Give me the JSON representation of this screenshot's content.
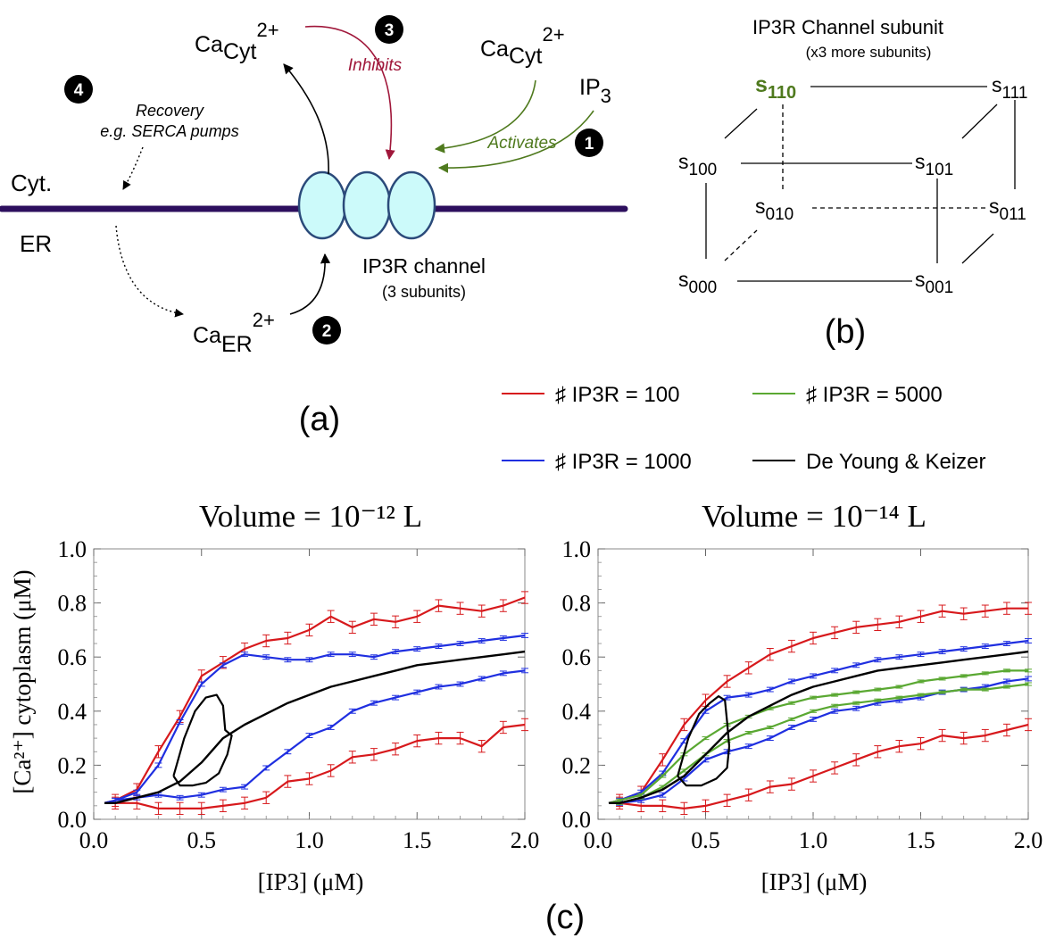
{
  "panel_a": {
    "label": "(a)",
    "ca_cyt_left": {
      "base": "Ca",
      "sub": "Cyt",
      "sup": "2+"
    },
    "ca_cyt_right": {
      "base": "Ca",
      "sub": "Cyt",
      "sup": "2+"
    },
    "ip3": {
      "base": "IP",
      "sub": "3"
    },
    "ca_er": {
      "base": "Ca",
      "sub": "ER",
      "sup": "2+"
    },
    "inhibits": "Inhibits",
    "activates": "Activates",
    "recovery_line1": "Recovery",
    "recovery_line2": "e.g. SERCA pumps",
    "cyt": "Cyt.",
    "er": "ER",
    "channel_title": "IP3R channel",
    "channel_sub": "(3 subunits)",
    "badges": [
      "1",
      "2",
      "3",
      "4"
    ],
    "colors": {
      "inhibit": "#a0173a",
      "activate": "#4f7a1e",
      "membrane": "#2d0f5e",
      "channel_fill": "#ccfafa",
      "channel_stroke": "#2b4a7a"
    }
  },
  "panel_b": {
    "label": "(b)",
    "title": "IP3R Channel subunit",
    "subtitle": "(x3 more subunits)",
    "states": {
      "s110": {
        "base": "s",
        "sub": "110"
      },
      "s111": {
        "base": "s",
        "sub": "111"
      },
      "s100": {
        "base": "s",
        "sub": "100"
      },
      "s101": {
        "base": "s",
        "sub": "101"
      },
      "s010": {
        "base": "s",
        "sub": "010"
      },
      "s011": {
        "base": "s",
        "sub": "011"
      },
      "s000": {
        "base": "s",
        "sub": "000"
      },
      "s001": {
        "base": "s",
        "sub": "001"
      }
    },
    "highlight_color": "#4f7a1e"
  },
  "panel_c": {
    "label": "(c)",
    "legend": [
      {
        "label": "♯ IP3R = 100",
        "color": "#d7191c"
      },
      {
        "label": "♯ IP3R = 5000",
        "color": "#5aa832"
      },
      {
        "label": "♯ IP3R = 1000",
        "color": "#1f2fe0"
      },
      {
        "label": "De Young & Keizer",
        "color": "#000000"
      }
    ],
    "ylabel": "[Ca²⁺] cytoplasm (μM)",
    "xlabel": "[IP3] (μM)"
  },
  "chart_data": [
    {
      "type": "line",
      "title": "Volume = 10⁻¹² L",
      "xlabel": "[IP3] (μM)",
      "ylabel": "[Ca²⁺] cytoplasm (μM)",
      "xlim": [
        0.0,
        2.0
      ],
      "ylim": [
        0.0,
        1.0
      ],
      "xticks": [
        "0.0",
        "0.5",
        "1.0",
        "1.5",
        "2.0"
      ],
      "yticks": [
        "0.0",
        "0.2",
        "0.4",
        "0.6",
        "0.8",
        "1.0"
      ],
      "grid": false,
      "x": [
        0.05,
        0.1,
        0.2,
        0.3,
        0.4,
        0.5,
        0.6,
        0.7,
        0.8,
        0.9,
        1.0,
        1.1,
        1.2,
        1.3,
        1.4,
        1.5,
        1.6,
        1.7,
        1.8,
        1.9,
        2.0
      ],
      "series": [
        {
          "name": "♯ IP3R = 100",
          "color": "#d7191c",
          "branch": "upper",
          "values": [
            0.06,
            0.07,
            0.11,
            0.25,
            0.38,
            0.53,
            0.58,
            0.63,
            0.66,
            0.67,
            0.7,
            0.75,
            0.71,
            0.74,
            0.73,
            0.75,
            0.79,
            0.78,
            0.77,
            0.79,
            0.82
          ],
          "error": 0.022
        },
        {
          "name": "♯ IP3R = 100",
          "color": "#d7191c",
          "branch": "lower",
          "values": [
            0.06,
            0.06,
            0.06,
            0.04,
            0.04,
            0.04,
            0.05,
            0.06,
            0.08,
            0.14,
            0.15,
            0.18,
            0.23,
            0.24,
            0.26,
            0.29,
            0.3,
            0.3,
            0.27,
            0.34,
            0.35
          ],
          "error": 0.022
        },
        {
          "name": "♯ IP3R = 1000",
          "color": "#1f2fe0",
          "branch": "upper",
          "values": [
            0.06,
            0.07,
            0.1,
            0.2,
            0.36,
            0.5,
            0.57,
            0.61,
            0.6,
            0.59,
            0.59,
            0.61,
            0.61,
            0.6,
            0.62,
            0.63,
            0.64,
            0.65,
            0.66,
            0.67,
            0.68
          ],
          "error": 0.008
        },
        {
          "name": "♯ IP3R = 1000",
          "color": "#1f2fe0",
          "branch": "lower",
          "values": [
            0.06,
            0.07,
            0.08,
            0.09,
            0.08,
            0.09,
            0.11,
            0.12,
            0.19,
            0.25,
            0.31,
            0.34,
            0.4,
            0.43,
            0.45,
            0.47,
            0.49,
            0.5,
            0.52,
            0.54,
            0.55
          ],
          "error": 0.008
        },
        {
          "name": "De Young & Keizer",
          "color": "#000000",
          "branch": "stable",
          "values": [
            0.06,
            0.06,
            0.08,
            0.1,
            0.14,
            0.21,
            0.3,
            0.35,
            0.39,
            0.43,
            0.46,
            0.49,
            0.51,
            0.53,
            0.55,
            0.57,
            0.58,
            0.59,
            0.6,
            0.61,
            0.62
          ]
        }
      ]
    },
    {
      "type": "line",
      "title": "Volume = 10⁻¹⁴ L",
      "xlabel": "[IP3] (μM)",
      "ylabel": "",
      "xlim": [
        0.0,
        2.0
      ],
      "ylim": [
        0.0,
        1.0
      ],
      "xticks": [
        "0.0",
        "0.5",
        "1.0",
        "1.5",
        "2.0"
      ],
      "yticks": [
        "0.0",
        "0.2",
        "0.4",
        "0.6",
        "0.8",
        "1.0"
      ],
      "grid": false,
      "x": [
        0.05,
        0.1,
        0.2,
        0.3,
        0.4,
        0.5,
        0.6,
        0.7,
        0.8,
        0.9,
        1.0,
        1.1,
        1.2,
        1.3,
        1.4,
        1.5,
        1.6,
        1.7,
        1.8,
        1.9,
        2.0
      ],
      "series": [
        {
          "name": "♯ IP3R = 100",
          "color": "#d7191c",
          "branch": "upper",
          "values": [
            0.06,
            0.07,
            0.1,
            0.22,
            0.35,
            0.44,
            0.51,
            0.56,
            0.61,
            0.64,
            0.67,
            0.69,
            0.71,
            0.72,
            0.73,
            0.75,
            0.77,
            0.76,
            0.77,
            0.78,
            0.78
          ],
          "error": 0.022
        },
        {
          "name": "♯ IP3R = 100",
          "color": "#d7191c",
          "branch": "lower",
          "values": [
            0.06,
            0.06,
            0.05,
            0.05,
            0.04,
            0.05,
            0.07,
            0.09,
            0.12,
            0.13,
            0.16,
            0.19,
            0.22,
            0.25,
            0.27,
            0.28,
            0.31,
            0.3,
            0.31,
            0.33,
            0.35
          ],
          "error": 0.022
        },
        {
          "name": "♯ IP3R = 1000",
          "color": "#1f2fe0",
          "branch": "upper",
          "values": [
            0.06,
            0.07,
            0.1,
            0.17,
            0.29,
            0.4,
            0.45,
            0.46,
            0.48,
            0.51,
            0.53,
            0.55,
            0.57,
            0.59,
            0.6,
            0.61,
            0.62,
            0.63,
            0.64,
            0.65,
            0.66
          ],
          "error": 0.008
        },
        {
          "name": "♯ IP3R = 1000",
          "color": "#1f2fe0",
          "branch": "lower",
          "values": [
            0.06,
            0.06,
            0.07,
            0.09,
            0.15,
            0.22,
            0.25,
            0.27,
            0.3,
            0.34,
            0.37,
            0.4,
            0.41,
            0.43,
            0.44,
            0.45,
            0.47,
            0.48,
            0.49,
            0.51,
            0.52
          ],
          "error": 0.008
        },
        {
          "name": "♯ IP3R = 5000",
          "color": "#5aa832",
          "branch": "upper",
          "values": [
            0.06,
            0.07,
            0.09,
            0.16,
            0.24,
            0.3,
            0.35,
            0.38,
            0.41,
            0.43,
            0.45,
            0.46,
            0.47,
            0.48,
            0.49,
            0.51,
            0.52,
            0.53,
            0.54,
            0.55,
            0.55
          ],
          "error": 0.005
        },
        {
          "name": "♯ IP3R = 5000",
          "color": "#5aa832",
          "branch": "lower",
          "values": [
            0.06,
            0.06,
            0.08,
            0.12,
            0.18,
            0.24,
            0.29,
            0.32,
            0.34,
            0.37,
            0.4,
            0.42,
            0.43,
            0.44,
            0.45,
            0.46,
            0.47,
            0.48,
            0.48,
            0.49,
            0.5
          ],
          "error": 0.005
        },
        {
          "name": "De Young & Keizer",
          "color": "#000000",
          "branch": "stable",
          "values": [
            0.06,
            0.06,
            0.08,
            0.11,
            0.16,
            0.24,
            0.32,
            0.38,
            0.42,
            0.46,
            0.49,
            0.51,
            0.53,
            0.55,
            0.56,
            0.57,
            0.58,
            0.59,
            0.6,
            0.61,
            0.62
          ]
        }
      ]
    }
  ]
}
